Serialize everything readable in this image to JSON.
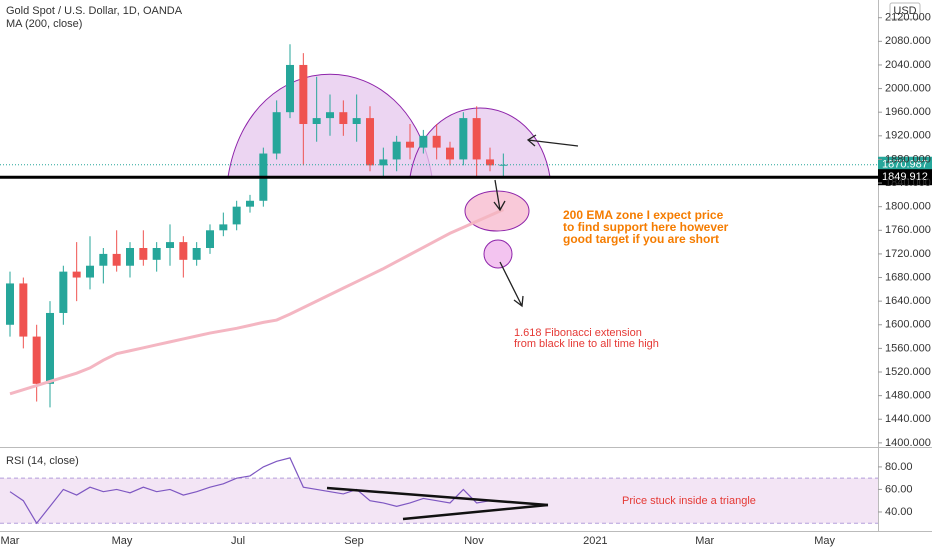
{
  "chart_data": [
    {
      "type": "candlestick",
      "title": "Gold Spot / U.S. Dollar, 1D, OANDA",
      "currency": "USD",
      "x": [
        0,
        1,
        2,
        3,
        4,
        5,
        6,
        7,
        8,
        9,
        10,
        11,
        12,
        13,
        14,
        15,
        16,
        17,
        18,
        19,
        20,
        21,
        22,
        23,
        24,
        25,
        26,
        27,
        28,
        29,
        30,
        31,
        32,
        33,
        34,
        35,
        36,
        37
      ],
      "open": [
        1600,
        1670,
        1580,
        1500,
        1620,
        1690,
        1680,
        1700,
        1720,
        1700,
        1730,
        1710,
        1730,
        1740,
        1710,
        1730,
        1760,
        1770,
        1800,
        1810,
        1890,
        1960,
        2040,
        1940,
        1950,
        1960,
        1940,
        1950,
        1870,
        1880,
        1910,
        1900,
        1920,
        1900,
        1880,
        1950,
        1880,
        1870
      ],
      "high": [
        1690,
        1680,
        1600,
        1640,
        1700,
        1740,
        1750,
        1730,
        1760,
        1740,
        1760,
        1740,
        1770,
        1750,
        1740,
        1770,
        1790,
        1810,
        1820,
        1900,
        1980,
        2075,
        2060,
        2020,
        1990,
        1980,
        1990,
        1970,
        1900,
        1920,
        1940,
        1930,
        1940,
        1910,
        1960,
        1970,
        1900,
        1890
      ],
      "low": [
        1580,
        1560,
        1470,
        1460,
        1600,
        1640,
        1660,
        1670,
        1690,
        1680,
        1700,
        1690,
        1700,
        1680,
        1700,
        1720,
        1750,
        1760,
        1790,
        1800,
        1880,
        1950,
        1870,
        1910,
        1920,
        1920,
        1910,
        1860,
        1850,
        1860,
        1880,
        1890,
        1880,
        1870,
        1870,
        1850,
        1860,
        1850
      ],
      "close": [
        1670,
        1580,
        1500,
        1620,
        1690,
        1680,
        1700,
        1720,
        1700,
        1730,
        1710,
        1730,
        1740,
        1710,
        1730,
        1760,
        1770,
        1800,
        1810,
        1890,
        1960,
        2040,
        1940,
        1950,
        1960,
        1940,
        1950,
        1870,
        1880,
        1910,
        1900,
        1920,
        1900,
        1880,
        1950,
        1880,
        1870,
        1871
      ],
      "up_color": "#26a69a",
      "down_color": "#ef5350",
      "series": [
        {
          "name": "MA (200, close)",
          "color": "#f4b6c2",
          "values": [
            1483,
            1490,
            1497,
            1504,
            1511,
            1518,
            1527,
            1540,
            1551,
            1556,
            1561,
            1566,
            1571,
            1576,
            1581,
            1586,
            1590,
            1594,
            1599,
            1604,
            1608,
            1618,
            1629,
            1640,
            1651,
            1662,
            1673,
            1684,
            1695,
            1707,
            1719,
            1731,
            1743,
            1755,
            1765,
            1775,
            1785,
            1795
          ]
        }
      ],
      "xlim": [
        -0.75,
        65.1
      ],
      "xticks": [
        {
          "value": 0,
          "label": "Mar"
        },
        {
          "value": 8.4,
          "label": "May"
        },
        {
          "value": 17.1,
          "label": "Jul"
        },
        {
          "value": 25.8,
          "label": "Sep"
        },
        {
          "value": 34.8,
          "label": "Nov"
        },
        {
          "value": 43.9,
          "label": "2021"
        },
        {
          "value": 52.1,
          "label": "Mar"
        },
        {
          "value": 61.1,
          "label": "May"
        }
      ],
      "ylim": [
        1393,
        2150
      ],
      "yticks": [
        {
          "value": 1400,
          "label": "1400.000"
        },
        {
          "value": 1440,
          "label": "1440.000"
        },
        {
          "value": 1480,
          "label": "1480.000"
        },
        {
          "value": 1520,
          "label": "1520.000"
        },
        {
          "value": 1560,
          "label": "1560.000"
        },
        {
          "value": 1600,
          "label": "1600.000"
        },
        {
          "value": 1640,
          "label": "1640.000"
        },
        {
          "value": 1680,
          "label": "1680.000"
        },
        {
          "value": 1720,
          "label": "1720.000"
        },
        {
          "value": 1760,
          "label": "1760.000"
        },
        {
          "value": 1800,
          "label": "1800.000"
        },
        {
          "value": 1840,
          "label": "1840.000"
        },
        {
          "value": 1880,
          "label": "1880.000"
        },
        {
          "value": 1920,
          "label": "1920.000"
        },
        {
          "value": 1960,
          "label": "1960.000"
        },
        {
          "value": 2000,
          "label": "2000.000"
        },
        {
          "value": 2040,
          "label": "2040.000"
        },
        {
          "value": 2080,
          "label": "2080.000"
        },
        {
          "value": 2120,
          "label": "2120.000"
        }
      ],
      "horizontal_line": 1849.912,
      "last_price": 1870.987,
      "annotations": [
        [
          "200 EMA zone I expect price",
          "to find support here however",
          "good target if you are short"
        ],
        [
          "1.618 Fibonacci extension",
          "from black line to all time high"
        ]
      ]
    },
    {
      "type": "line",
      "title": "RSI (14, close)",
      "x": [
        0,
        1,
        2,
        3,
        4,
        5,
        6,
        7,
        8,
        9,
        10,
        11,
        12,
        13,
        14,
        15,
        16,
        17,
        18,
        19,
        20,
        21,
        22,
        23,
        24,
        25,
        26,
        27,
        28,
        29,
        30,
        31,
        32,
        33,
        34,
        35,
        36,
        37
      ],
      "values": [
        58,
        50,
        30,
        45,
        60,
        55,
        62,
        58,
        60,
        57,
        62,
        58,
        60,
        55,
        58,
        62,
        65,
        70,
        72,
        80,
        85,
        88,
        62,
        60,
        58,
        56,
        60,
        50,
        48,
        45,
        48,
        52,
        50,
        48,
        60,
        48,
        50,
        49
      ],
      "color": "#7e57c2",
      "band": [
        30,
        70
      ],
      "ylim": [
        24,
        95
      ],
      "yticks": [
        {
          "value": 40,
          "label": "40.00"
        },
        {
          "value": 60,
          "label": "60.00"
        },
        {
          "value": 80,
          "label": "80.00"
        }
      ],
      "annotation": "Price stuck inside a triangle"
    }
  ]
}
